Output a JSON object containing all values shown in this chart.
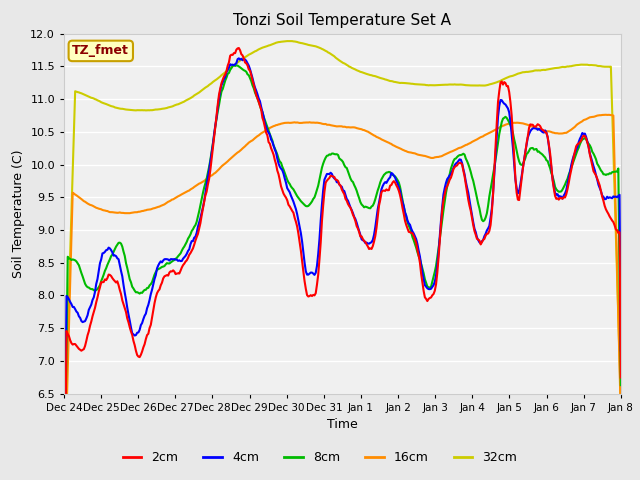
{
  "title": "Tonzi Soil Temperature Set A",
  "xlabel": "Time",
  "ylabel": "Soil Temperature (C)",
  "ylim": [
    6.5,
    12.0
  ],
  "yticks": [
    6.5,
    7.0,
    7.5,
    8.0,
    8.5,
    9.0,
    9.5,
    10.0,
    10.5,
    11.0,
    11.5,
    12.0
  ],
  "annotation": "TZ_fmet",
  "annotation_color": "#8B0000",
  "annotation_bg": "#FFFFC0",
  "annotation_border": "#C8A000",
  "legend_labels": [
    "2cm",
    "4cm",
    "8cm",
    "16cm",
    "32cm"
  ],
  "line_colors": [
    "#FF0000",
    "#0000FF",
    "#00BB00",
    "#FF8C00",
    "#CCCC00"
  ],
  "bg_color": "#E8E8E8",
  "plot_bg": "#F0F0F0",
  "grid_color": "#FFFFFF",
  "tick_labels": [
    "Dec 24",
    "Dec 25",
    "Dec 26",
    "Dec 27",
    "Dec 28",
    "Dec 29",
    "Dec 30",
    "Dec 31",
    "Jan 1",
    "Jan 2",
    "Jan 3",
    "Jan 4",
    "Jan 5",
    "Jan 6",
    "Jan 7",
    "Jan 8"
  ]
}
